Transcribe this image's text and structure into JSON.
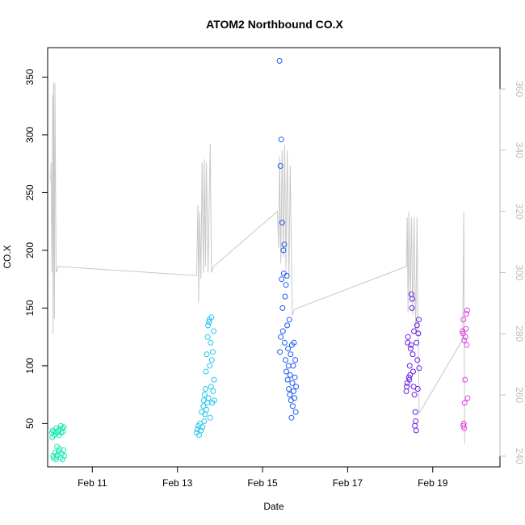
{
  "chart_data": {
    "type": "scatter",
    "title": "ATOM2 Northbound CO.X",
    "xlabel": "Date",
    "ylabel": "CO.X",
    "x_ticks": [
      {
        "day": 11,
        "label": "Feb 11"
      },
      {
        "day": 13,
        "label": "Feb 13"
      },
      {
        "day": 15,
        "label": "Feb 15"
      },
      {
        "day": 17,
        "label": "Feb 17"
      },
      {
        "day": 19,
        "label": "Feb 19"
      }
    ],
    "xlim": [
      9.95,
      20.58
    ],
    "ylim": [
      12.5,
      375.5
    ],
    "y_ticks": [
      50,
      100,
      150,
      200,
      250,
      300,
      350
    ],
    "y2lim": [
      236.5,
      373.5
    ],
    "y2_ticks": [
      240,
      260,
      280,
      300,
      320,
      340,
      360
    ],
    "grid": false,
    "legend": "none",
    "point_style": "open-circle",
    "secondary_line_color": "#c8c8c8",
    "series": [
      {
        "color": "#1de9b6",
        "points": [
          [
            10.05,
            42
          ],
          [
            10.06,
            38
          ],
          [
            10.07,
            44
          ],
          [
            10.08,
            22
          ],
          [
            10.09,
            20
          ],
          [
            10.1,
            40
          ],
          [
            10.11,
            43
          ],
          [
            10.12,
            25
          ],
          [
            10.13,
            41
          ],
          [
            10.14,
            19
          ],
          [
            10.15,
            46
          ],
          [
            10.16,
            21
          ],
          [
            10.17,
            30
          ],
          [
            10.18,
            42
          ],
          [
            10.19,
            23
          ],
          [
            10.2,
            44
          ],
          [
            10.21,
            26
          ],
          [
            10.22,
            40
          ],
          [
            10.23,
            28
          ],
          [
            10.24,
            45
          ],
          [
            10.25,
            20
          ],
          [
            10.26,
            48
          ],
          [
            10.27,
            42
          ],
          [
            10.28,
            24
          ],
          [
            10.29,
            46
          ],
          [
            10.3,
            19
          ],
          [
            10.31,
            43
          ],
          [
            10.32,
            27
          ],
          [
            10.33,
            47
          ],
          [
            10.34,
            22
          ]
        ]
      },
      {
        "color": "#26c6ec",
        "points": [
          [
            13.45,
            42
          ],
          [
            13.47,
            45
          ],
          [
            13.49,
            48
          ],
          [
            13.51,
            40
          ],
          [
            13.53,
            50
          ],
          [
            13.55,
            44
          ],
          [
            13.57,
            60
          ],
          [
            13.59,
            47
          ],
          [
            13.61,
            65
          ],
          [
            13.62,
            70
          ],
          [
            13.63,
            52
          ],
          [
            13.64,
            75
          ],
          [
            13.65,
            58
          ],
          [
            13.66,
            80
          ],
          [
            13.67,
            95
          ],
          [
            13.68,
            62
          ],
          [
            13.69,
            110
          ],
          [
            13.7,
            68
          ],
          [
            13.71,
            125
          ],
          [
            13.72,
            135
          ],
          [
            13.73,
            72
          ],
          [
            13.74,
            138
          ],
          [
            13.75,
            140
          ],
          [
            13.76,
            100
          ],
          [
            13.77,
            55
          ],
          [
            13.78,
            120
          ],
          [
            13.79,
            82
          ],
          [
            13.8,
            142
          ],
          [
            13.81,
            105
          ],
          [
            13.82,
            68
          ],
          [
            13.83,
            112
          ],
          [
            13.84,
            78
          ],
          [
            13.85,
            130
          ],
          [
            13.86,
            88
          ],
          [
            13.87,
            70
          ]
        ]
      },
      {
        "color": "#1e5bf0",
        "points": [
          [
            15.4,
            364
          ],
          [
            15.42,
            273
          ],
          [
            15.44,
            296
          ],
          [
            15.45,
            175
          ],
          [
            15.46,
            224
          ],
          [
            15.47,
            150
          ],
          [
            15.48,
            130
          ],
          [
            15.49,
            200
          ],
          [
            15.5,
            180
          ],
          [
            15.51,
            205
          ],
          [
            15.52,
            120
          ],
          [
            15.53,
            160
          ],
          [
            15.54,
            105
          ],
          [
            15.55,
            170
          ],
          [
            15.56,
            95
          ],
          [
            15.57,
            178
          ],
          [
            15.58,
            135
          ],
          [
            15.59,
            88
          ],
          [
            15.6,
            115
          ],
          [
            15.61,
            100
          ],
          [
            15.62,
            80
          ],
          [
            15.63,
            140
          ],
          [
            15.64,
            75
          ],
          [
            15.65,
            92
          ],
          [
            15.66,
            110
          ],
          [
            15.67,
            70
          ],
          [
            15.68,
            55
          ],
          [
            15.69,
            118
          ],
          [
            15.7,
            85
          ],
          [
            15.71,
            65
          ],
          [
            15.72,
            100
          ],
          [
            15.73,
            78
          ],
          [
            15.74,
            120
          ],
          [
            15.75,
            72
          ],
          [
            15.76,
            90
          ],
          [
            15.77,
            105
          ],
          [
            15.78,
            60
          ],
          [
            15.79,
            82
          ],
          [
            15.41,
            112
          ],
          [
            15.43,
            125
          ]
        ]
      },
      {
        "color": "#6a1be8",
        "points": [
          [
            18.38,
            78
          ],
          [
            18.4,
            85
          ],
          [
            18.42,
            125
          ],
          [
            18.44,
            90
          ],
          [
            18.46,
            100
          ],
          [
            18.48,
            115
          ],
          [
            18.5,
            162
          ],
          [
            18.51,
            150
          ],
          [
            18.52,
            158
          ],
          [
            18.53,
            110
          ],
          [
            18.54,
            95
          ],
          [
            18.55,
            82
          ],
          [
            18.56,
            130
          ],
          [
            18.57,
            75
          ],
          [
            18.58,
            48
          ],
          [
            18.59,
            60
          ],
          [
            18.6,
            52
          ],
          [
            18.61,
            44
          ],
          [
            18.62,
            120
          ],
          [
            18.63,
            135
          ],
          [
            18.64,
            105
          ],
          [
            18.65,
            80
          ],
          [
            18.66,
            128
          ],
          [
            18.67,
            140
          ],
          [
            18.68,
            98
          ],
          [
            18.45,
            88
          ],
          [
            18.47,
            92
          ],
          [
            18.49,
            118
          ],
          [
            18.39,
            82
          ],
          [
            18.41,
            120
          ]
        ]
      },
      {
        "color": "#e040e6",
        "points": [
          [
            19.7,
            130
          ],
          [
            19.71,
            128
          ],
          [
            19.72,
            140
          ],
          [
            19.73,
            50
          ],
          [
            19.74,
            46
          ],
          [
            19.75,
            68
          ],
          [
            19.76,
            88
          ],
          [
            19.77,
            125
          ],
          [
            19.78,
            132
          ],
          [
            19.79,
            145
          ],
          [
            19.8,
            118
          ],
          [
            19.81,
            148
          ],
          [
            19.82,
            72
          ],
          [
            19.72,
            48
          ],
          [
            19.74,
            122
          ]
        ]
      }
    ],
    "secondary_line": {
      "axis": "right",
      "segments": [
        [
          [
            10.02,
            330
          ],
          [
            10.03,
            336
          ],
          [
            10.05,
            300
          ],
          [
            10.07,
            358
          ],
          [
            10.08,
            280
          ],
          [
            10.09,
            362
          ],
          [
            10.11,
            285
          ],
          [
            10.12,
            362
          ],
          [
            10.15,
            300
          ],
          [
            10.2,
            302
          ],
          [
            13.45,
            299
          ],
          [
            13.48,
            322
          ],
          [
            13.5,
            290
          ],
          [
            13.52,
            320
          ],
          [
            13.55,
            298
          ],
          [
            13.58,
            336
          ],
          [
            13.61,
            300
          ],
          [
            13.63,
            337
          ],
          [
            13.66,
            302
          ],
          [
            13.68,
            336
          ],
          [
            13.72,
            300
          ],
          [
            13.77,
            342
          ],
          [
            13.8,
            300
          ],
          [
            13.85,
            302
          ],
          [
            15.35,
            320
          ],
          [
            15.38,
            308
          ],
          [
            15.4,
            338
          ],
          [
            15.43,
            303
          ],
          [
            15.46,
            340
          ],
          [
            15.49,
            305
          ],
          [
            15.52,
            342
          ],
          [
            15.55,
            301
          ],
          [
            15.58,
            340
          ],
          [
            15.62,
            298
          ],
          [
            15.65,
            335
          ],
          [
            15.7,
            286
          ],
          [
            15.75,
            288
          ],
          [
            18.38,
            302
          ],
          [
            18.4,
            318
          ],
          [
            18.42,
            287
          ],
          [
            18.44,
            320
          ],
          [
            18.47,
            290
          ],
          [
            18.5,
            318
          ],
          [
            18.53,
            286
          ],
          [
            18.56,
            318
          ],
          [
            18.6,
            280
          ],
          [
            18.63,
            318
          ],
          [
            18.66,
            276
          ],
          [
            18.68,
            254
          ],
          [
            19.7,
            278
          ],
          [
            19.72,
            300
          ],
          [
            19.73,
            320
          ],
          [
            19.75,
            244
          ]
        ]
      ]
    }
  }
}
